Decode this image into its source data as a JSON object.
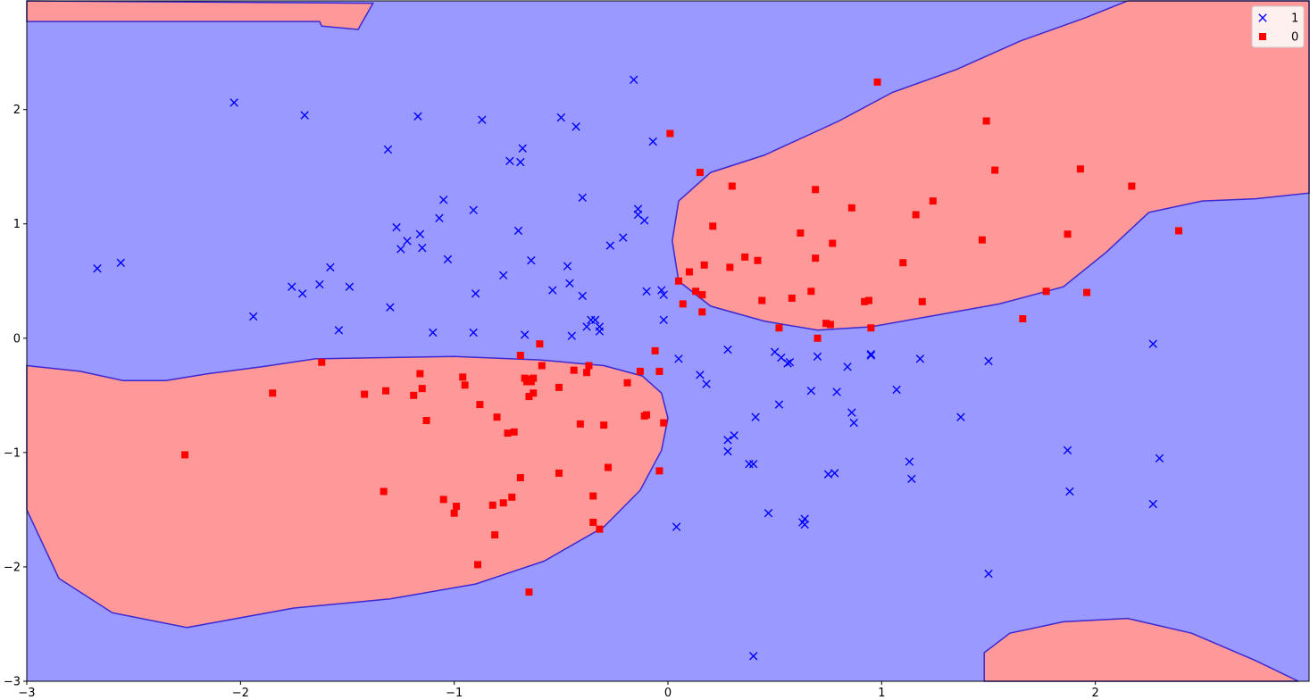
{
  "chart_data": {
    "type": "scatter",
    "title": "",
    "xlabel": "",
    "ylabel": "",
    "xlim": [
      -3,
      3
    ],
    "ylim": [
      -3,
      2.95
    ],
    "grid": false,
    "legend_position": "top-right",
    "x_ticks": [
      {
        "value": -3,
        "label": "−3"
      },
      {
        "value": -2,
        "label": "−2"
      },
      {
        "value": -1,
        "label": "−1"
      },
      {
        "value": 0,
        "label": "0"
      },
      {
        "value": 1,
        "label": "1"
      },
      {
        "value": 2,
        "label": "2"
      }
    ],
    "y_ticks": [
      {
        "value": -3,
        "label": "−3"
      },
      {
        "value": -2,
        "label": "−2"
      },
      {
        "value": -1,
        "label": "−1"
      },
      {
        "value": 0,
        "label": "0"
      },
      {
        "value": 1,
        "label": "1"
      },
      {
        "value": 2,
        "label": "2"
      }
    ],
    "regions": {
      "class_1_color": "#9999ff",
      "class_0_color": "#ff9999",
      "boundary_color": "#3c28d2",
      "class_0_regions": [
        [
          [
            -3,
            2.77
          ],
          [
            -1.63,
            2.77
          ],
          [
            -1.62,
            2.73
          ],
          [
            -1.45,
            2.7
          ],
          [
            -1.38,
            2.93
          ],
          [
            -3,
            2.95
          ]
        ],
        [
          [
            -3,
            -0.24
          ],
          [
            -2.75,
            -0.29
          ],
          [
            -2.55,
            -0.37
          ],
          [
            -2.35,
            -0.37
          ],
          [
            -2.15,
            -0.31
          ],
          [
            -1.9,
            -0.25
          ],
          [
            -1.65,
            -0.18
          ],
          [
            -1.35,
            -0.17
          ],
          [
            -1.0,
            -0.16
          ],
          [
            -0.6,
            -0.19
          ],
          [
            -0.3,
            -0.24
          ],
          [
            -0.12,
            -0.33
          ],
          [
            -0.03,
            -0.48
          ],
          [
            0,
            -0.7
          ],
          [
            -0.03,
            -0.98
          ],
          [
            -0.13,
            -1.33
          ],
          [
            -0.3,
            -1.65
          ],
          [
            -0.58,
            -1.95
          ],
          [
            -0.9,
            -2.15
          ],
          [
            -1.3,
            -2.28
          ],
          [
            -1.75,
            -2.36
          ],
          [
            -2.25,
            -2.53
          ],
          [
            -2.6,
            -2.4
          ],
          [
            -2.85,
            -2.1
          ],
          [
            -3,
            -1.5
          ]
        ],
        [
          [
            1.48,
            -3
          ],
          [
            1.48,
            -2.75
          ],
          [
            1.6,
            -2.58
          ],
          [
            1.85,
            -2.48
          ],
          [
            2.15,
            -2.45
          ],
          [
            2.45,
            -2.58
          ],
          [
            2.75,
            -2.82
          ],
          [
            2.95,
            -3
          ]
        ],
        [
          [
            0.05,
            1.2
          ],
          [
            0.2,
            1.45
          ],
          [
            0.45,
            1.6
          ],
          [
            0.8,
            1.9
          ],
          [
            1.05,
            2.15
          ],
          [
            1.35,
            2.35
          ],
          [
            1.65,
            2.6
          ],
          [
            1.95,
            2.8
          ],
          [
            2.15,
            2.95
          ],
          [
            3,
            2.95
          ],
          [
            3,
            1.27
          ],
          [
            2.75,
            1.22
          ],
          [
            2.5,
            1.2
          ],
          [
            2.25,
            1.1
          ],
          [
            2.05,
            0.75
          ],
          [
            1.85,
            0.45
          ],
          [
            1.55,
            0.3
          ],
          [
            1.25,
            0.2
          ],
          [
            0.95,
            0.1
          ],
          [
            0.7,
            0.07
          ],
          [
            0.45,
            0.15
          ],
          [
            0.2,
            0.28
          ],
          [
            0.05,
            0.5
          ],
          [
            0.02,
            0.85
          ]
        ]
      ]
    },
    "series": [
      {
        "name": "1",
        "marker": "x",
        "color": "#0000ff",
        "points": [
          [
            -2.67,
            0.61
          ],
          [
            -2.56,
            0.66
          ],
          [
            -2.03,
            2.06
          ],
          [
            -1.94,
            0.19
          ],
          [
            -1.76,
            0.45
          ],
          [
            -1.71,
            0.39
          ],
          [
            -1.7,
            1.95
          ],
          [
            -1.63,
            0.47
          ],
          [
            -1.58,
            0.62
          ],
          [
            -1.54,
            0.07
          ],
          [
            -1.49,
            0.45
          ],
          [
            -1.31,
            1.65
          ],
          [
            -1.3,
            0.27
          ],
          [
            -1.27,
            0.97
          ],
          [
            -1.25,
            0.78
          ],
          [
            -1.22,
            0.85
          ],
          [
            -1.17,
            1.94
          ],
          [
            -1.16,
            0.91
          ],
          [
            -1.15,
            0.79
          ],
          [
            -1.1,
            0.05
          ],
          [
            -1.07,
            1.05
          ],
          [
            -1.05,
            1.21
          ],
          [
            -1.03,
            0.69
          ],
          [
            -0.91,
            1.12
          ],
          [
            -0.91,
            0.05
          ],
          [
            -0.9,
            0.39
          ],
          [
            -0.87,
            1.91
          ],
          [
            -0.77,
            0.55
          ],
          [
            -0.74,
            1.55
          ],
          [
            -0.7,
            0.94
          ],
          [
            -0.69,
            1.54
          ],
          [
            -0.68,
            1.66
          ],
          [
            -0.67,
            0.03
          ],
          [
            -0.64,
            0.68
          ],
          [
            -0.54,
            0.42
          ],
          [
            -0.5,
            1.93
          ],
          [
            -0.47,
            0.63
          ],
          [
            -0.46,
            0.48
          ],
          [
            -0.45,
            0.02
          ],
          [
            -0.43,
            1.85
          ],
          [
            -0.4,
            1.23
          ],
          [
            -0.4,
            0.37
          ],
          [
            -0.38,
            0.1
          ],
          [
            -0.36,
            0.16
          ],
          [
            -0.34,
            0.16
          ],
          [
            -0.32,
            0.1
          ],
          [
            -0.32,
            0.06
          ],
          [
            -0.27,
            0.81
          ],
          [
            -0.21,
            0.88
          ],
          [
            -0.16,
            2.26
          ],
          [
            -0.14,
            1.13
          ],
          [
            -0.14,
            1.08
          ],
          [
            -0.11,
            1.03
          ],
          [
            -0.1,
            0.41
          ],
          [
            -0.07,
            1.72
          ],
          [
            -0.03,
            0.42
          ],
          [
            -0.02,
            0.38
          ],
          [
            -0.02,
            0.16
          ],
          [
            0.04,
            -1.65
          ],
          [
            0.05,
            -0.18
          ],
          [
            0.15,
            -0.32
          ],
          [
            0.18,
            -0.4
          ],
          [
            0.28,
            -0.1
          ],
          [
            0.28,
            -0.89
          ],
          [
            0.28,
            -0.99
          ],
          [
            0.31,
            -0.85
          ],
          [
            0.38,
            -1.1
          ],
          [
            0.4,
            -1.1
          ],
          [
            0.4,
            -2.78
          ],
          [
            0.41,
            -0.69
          ],
          [
            0.47,
            -1.53
          ],
          [
            0.5,
            -0.12
          ],
          [
            0.52,
            -0.58
          ],
          [
            0.53,
            -0.17
          ],
          [
            0.56,
            -0.22
          ],
          [
            0.57,
            -0.21
          ],
          [
            0.63,
            -1.61
          ],
          [
            0.64,
            -1.58
          ],
          [
            0.64,
            -1.63
          ],
          [
            0.67,
            -0.46
          ],
          [
            0.7,
            -0.16
          ],
          [
            0.75,
            -1.19
          ],
          [
            0.78,
            -1.18
          ],
          [
            0.79,
            -0.47
          ],
          [
            0.84,
            -0.25
          ],
          [
            0.86,
            -0.65
          ],
          [
            0.87,
            -0.74
          ],
          [
            0.95,
            -0.14
          ],
          [
            0.95,
            -0.15
          ],
          [
            1.07,
            -0.45
          ],
          [
            1.13,
            -1.08
          ],
          [
            1.14,
            -1.23
          ],
          [
            1.18,
            -0.18
          ],
          [
            1.37,
            -0.69
          ],
          [
            1.5,
            -0.2
          ],
          [
            1.5,
            -2.06
          ],
          [
            1.87,
            -0.98
          ],
          [
            1.88,
            -1.34
          ],
          [
            2.27,
            -0.05
          ],
          [
            2.27,
            -1.45
          ],
          [
            2.3,
            -1.05
          ]
        ]
      },
      {
        "name": "0",
        "marker": "s",
        "color": "#ff0000",
        "points": [
          [
            -2.26,
            -1.02
          ],
          [
            -1.85,
            -0.48
          ],
          [
            -1.62,
            -0.21
          ],
          [
            -1.42,
            -0.49
          ],
          [
            -1.33,
            -1.34
          ],
          [
            -1.32,
            -0.46
          ],
          [
            -1.19,
            -0.5
          ],
          [
            -1.16,
            -0.31
          ],
          [
            -1.15,
            -0.44
          ],
          [
            -1.13,
            -0.72
          ],
          [
            -1.05,
            -1.41
          ],
          [
            -1.0,
            -1.53
          ],
          [
            -0.99,
            -1.47
          ],
          [
            -0.96,
            -0.34
          ],
          [
            -0.95,
            -0.41
          ],
          [
            -0.89,
            -1.98
          ],
          [
            -0.88,
            -0.58
          ],
          [
            -0.82,
            -1.46
          ],
          [
            -0.81,
            -1.72
          ],
          [
            -0.8,
            -0.69
          ],
          [
            -0.77,
            -1.44
          ],
          [
            -0.75,
            -0.83
          ],
          [
            -0.73,
            -1.39
          ],
          [
            -0.72,
            -0.82
          ],
          [
            -0.69,
            -0.15
          ],
          [
            -0.69,
            -1.22
          ],
          [
            -0.67,
            -0.35
          ],
          [
            -0.66,
            -0.38
          ],
          [
            -0.65,
            -0.51
          ],
          [
            -0.65,
            -0.36
          ],
          [
            -0.64,
            -0.38
          ],
          [
            -0.63,
            -0.48
          ],
          [
            -0.63,
            -0.35
          ],
          [
            -0.6,
            -0.05
          ],
          [
            -0.59,
            -0.24
          ],
          [
            -0.51,
            -1.18
          ],
          [
            -0.51,
            -0.43
          ],
          [
            -0.44,
            -0.28
          ],
          [
            -0.41,
            -0.75
          ],
          [
            -0.38,
            -0.3
          ],
          [
            -0.37,
            -0.24
          ],
          [
            -0.35,
            -1.38
          ],
          [
            -0.35,
            -1.61
          ],
          [
            -0.3,
            -0.76
          ],
          [
            -0.28,
            -1.13
          ],
          [
            -0.19,
            -0.39
          ],
          [
            -0.13,
            -0.29
          ],
          [
            -0.11,
            -0.68
          ],
          [
            -0.1,
            -0.67
          ],
          [
            -0.06,
            -0.11
          ],
          [
            -0.04,
            -1.16
          ],
          [
            -0.04,
            -0.29
          ],
          [
            -0.02,
            -0.74
          ],
          [
            0.01,
            1.79
          ],
          [
            0.05,
            0.5
          ],
          [
            0.07,
            0.3
          ],
          [
            0.1,
            0.58
          ],
          [
            0.13,
            0.41
          ],
          [
            0.15,
            1.45
          ],
          [
            0.16,
            0.38
          ],
          [
            0.16,
            0.23
          ],
          [
            0.17,
            0.64
          ],
          [
            0.21,
            0.98
          ],
          [
            0.29,
            0.62
          ],
          [
            0.3,
            1.33
          ],
          [
            0.36,
            0.71
          ],
          [
            0.42,
            0.68
          ],
          [
            0.44,
            0.33
          ],
          [
            0.52,
            0.09
          ],
          [
            0.58,
            0.35
          ],
          [
            0.62,
            0.92
          ],
          [
            0.67,
            0.41
          ],
          [
            0.69,
            0.7
          ],
          [
            0.69,
            1.3
          ],
          [
            0.7,
            0.0
          ],
          [
            0.74,
            0.13
          ],
          [
            0.76,
            0.12
          ],
          [
            0.77,
            0.83
          ],
          [
            0.86,
            1.14
          ],
          [
            0.92,
            0.32
          ],
          [
            0.94,
            0.33
          ],
          [
            0.95,
            0.09
          ],
          [
            0.98,
            2.24
          ],
          [
            1.1,
            0.66
          ],
          [
            1.16,
            1.08
          ],
          [
            1.19,
            0.32
          ],
          [
            1.24,
            1.2
          ],
          [
            1.47,
            0.86
          ],
          [
            1.49,
            1.9
          ],
          [
            1.53,
            1.47
          ],
          [
            1.66,
            0.17
          ],
          [
            1.77,
            0.41
          ],
          [
            1.87,
            0.91
          ],
          [
            1.93,
            1.48
          ],
          [
            1.96,
            0.4
          ],
          [
            2.17,
            1.33
          ],
          [
            2.39,
            0.94
          ],
          [
            -0.65,
            -2.22
          ],
          [
            -0.32,
            -1.67
          ]
        ]
      }
    ],
    "legend": [
      {
        "label": "1",
        "marker": "x",
        "color": "#0000ff"
      },
      {
        "label": "0",
        "marker": "s",
        "color": "#ff0000"
      }
    ]
  }
}
